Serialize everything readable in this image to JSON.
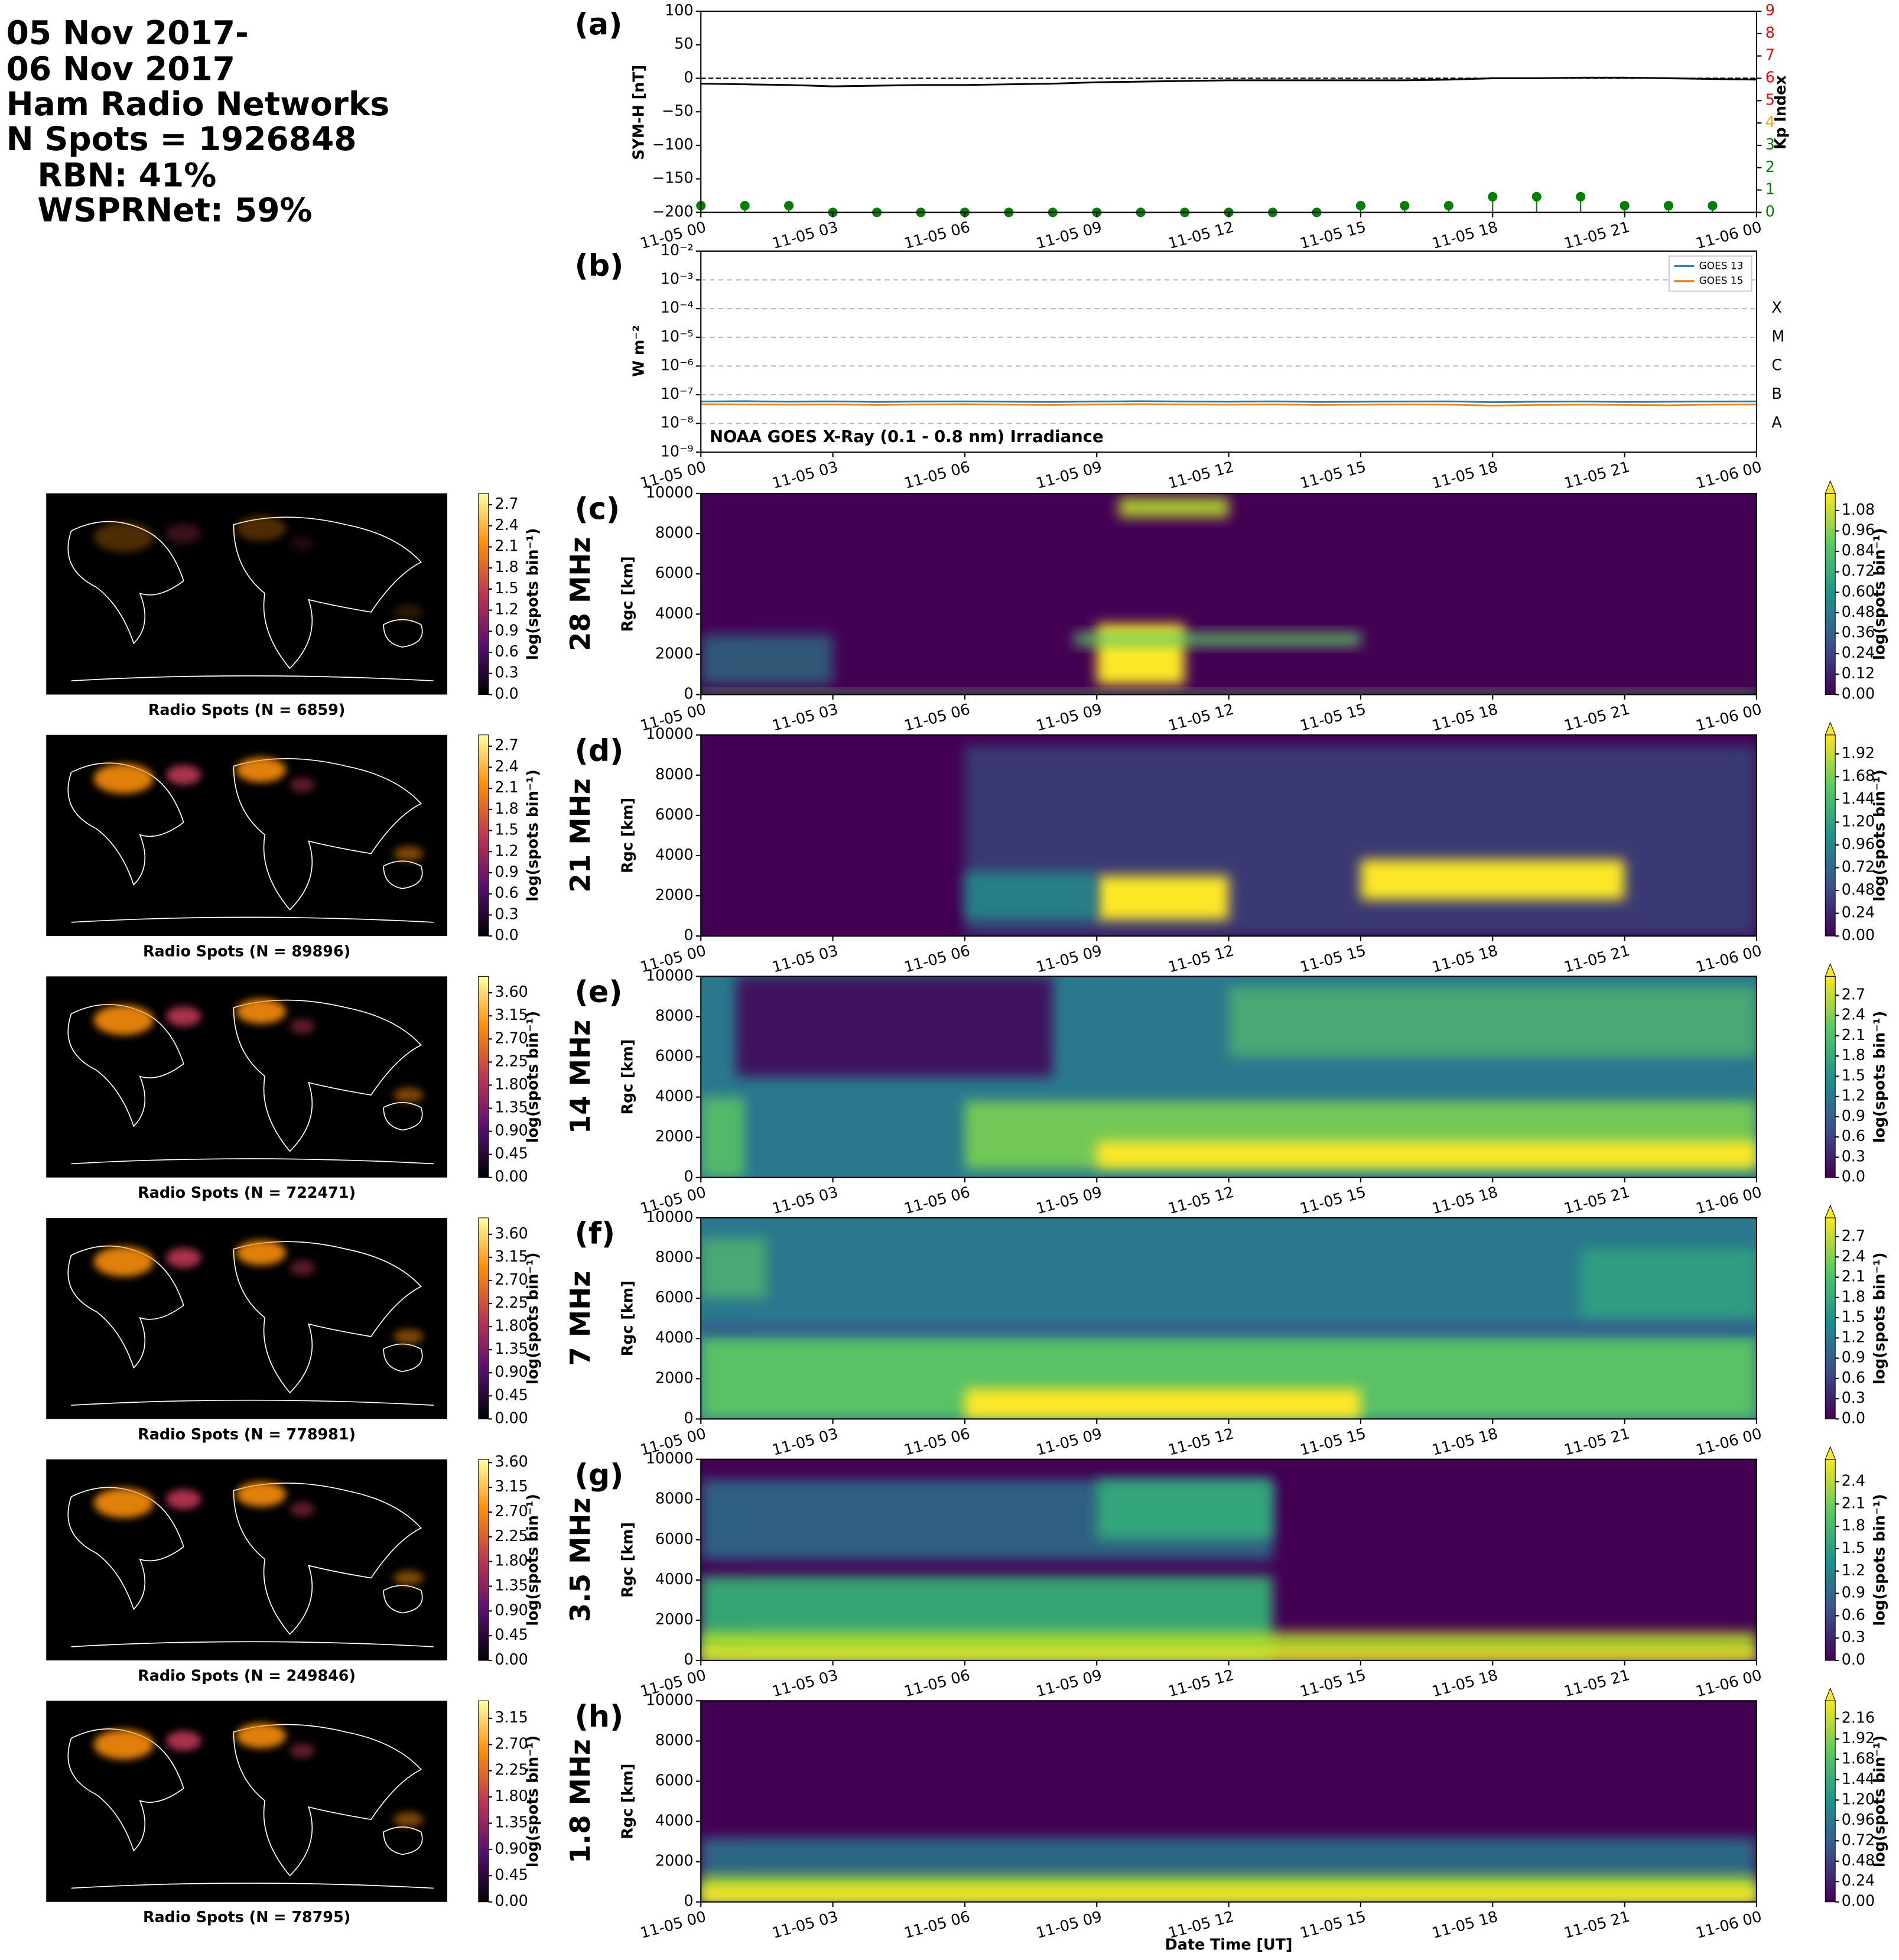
{
  "header": [
    "05 Nov 2017-",
    "06 Nov 2017",
    "Ham Radio Networks",
    "N Spots = 1926848",
    "RBN: 41%",
    "WSPRNet: 59%"
  ],
  "chart_data": [
    {
      "panel": "(a)",
      "type": "line",
      "ylabel": "SYM-H [nT]",
      "y2label": "Kp Index",
      "xlim": [
        "11-05 00",
        "11-06 00"
      ],
      "xticks": [
        "11-05 00",
        "11-05 03",
        "11-05 06",
        "11-05 09",
        "11-05 12",
        "11-05 15",
        "11-05 18",
        "11-05 21",
        "11-06 00"
      ],
      "ylim": [
        -200,
        100
      ],
      "yticks": [
        {
          "value": -200,
          "label": "−200"
        },
        {
          "value": -150,
          "label": "−150"
        },
        {
          "value": -100,
          "label": "−100"
        },
        {
          "value": -50,
          "label": "−50"
        },
        0,
        50,
        100
      ],
      "y2lim": [
        0,
        9
      ],
      "y2ticks": [
        0,
        1,
        2,
        3,
        4,
        5,
        6,
        7,
        8,
        9
      ],
      "y2tick_colors": [
        "#008000",
        "#008000",
        "#008000",
        "#008000",
        "#ffa500",
        "#ff0000",
        "#ff0000",
        "#ff0000",
        "#ff0000",
        "#ff0000"
      ],
      "hline": 0,
      "series": [
        {
          "color": "#000000",
          "x": [
            "11-05 00",
            "11-05 01",
            "11-05 02",
            "11-05 03",
            "11-05 04",
            "11-05 05",
            "11-05 06",
            "11-05 07",
            "11-05 08",
            "11-05 09",
            "11-05 10",
            "11-05 11",
            "11-05 12",
            "11-05 13",
            "11-05 14",
            "11-05 15",
            "11-05 16",
            "11-05 17",
            "11-05 18",
            "11-05 19",
            "11-05 20",
            "11-05 21",
            "11-05 22",
            "11-05 23",
            "11-06 00"
          ],
          "values": [
            -8,
            -9,
            -10,
            -12,
            -11,
            -10,
            -10,
            -9,
            -8,
            -6,
            -5,
            -4,
            -3,
            -3,
            -3,
            -3,
            -3,
            -2,
            0,
            0,
            1,
            1,
            0,
            -1,
            -2
          ]
        },
        {
          "color": "#008000",
          "axis": "y2",
          "style": "stem",
          "x": [
            "11-05 00",
            "11-05 01",
            "11-05 02",
            "11-05 03",
            "11-05 04",
            "11-05 05",
            "11-05 06",
            "11-05 07",
            "11-05 08",
            "11-05 09",
            "11-05 10",
            "11-05 11",
            "11-05 12",
            "11-05 13",
            "11-05 14",
            "11-05 15",
            "11-05 16",
            "11-05 17",
            "11-05 18",
            "11-05 19",
            "11-05 20",
            "11-05 21",
            "11-05 22",
            "11-05 23"
          ],
          "values": [
            0.3,
            0.3,
            0.3,
            0,
            0,
            0,
            0,
            0,
            0,
            0,
            0,
            0,
            0,
            0,
            0,
            0.3,
            0.3,
            0.3,
            0.7,
            0.7,
            0.7,
            0.3,
            0.3,
            0.3
          ]
        }
      ]
    },
    {
      "panel": "(b)",
      "type": "line",
      "log_scale": true,
      "grid": true,
      "legend": "upper right",
      "ylabel": "W m⁻²",
      "annotation": "NOAA GOES X-Ray (0.1 - 0.8 nm) Irradiance",
      "xlim": [
        "11-05 00",
        "11-06 00"
      ],
      "xticks": [
        "11-05 00",
        "11-05 03",
        "11-05 06",
        "11-05 09",
        "11-05 12",
        "11-05 15",
        "11-05 18",
        "11-05 21",
        "11-06 00"
      ],
      "ylim": [
        1e-09,
        0.01
      ],
      "yticks": [
        {
          "value": 1e-09,
          "label": "10⁻⁹"
        },
        {
          "value": 1e-08,
          "label": "10⁻⁸"
        },
        {
          "value": 1e-07,
          "label": "10⁻⁷"
        },
        {
          "value": 1e-06,
          "label": "10⁻⁶"
        },
        {
          "value": 1e-05,
          "label": "10⁻⁵"
        },
        {
          "value": 0.0001,
          "label": "10⁻⁴"
        },
        {
          "value": 0.001,
          "label": "10⁻³"
        },
        {
          "value": 0.01,
          "label": "10⁻²"
        }
      ],
      "levels": [
        {
          "value": 0.0001,
          "label": "X"
        },
        {
          "value": 1e-05,
          "label": "M"
        },
        {
          "value": 1e-06,
          "label": "C"
        },
        {
          "value": 1e-07,
          "label": "B"
        },
        {
          "value": 1e-08,
          "label": "A"
        }
      ],
      "x": [
        "11-05 00",
        "11-05 01",
        "11-05 02",
        "11-05 03",
        "11-05 04",
        "11-05 05",
        "11-05 06",
        "11-05 07",
        "11-05 08",
        "11-05 09",
        "11-05 10",
        "11-05 11",
        "11-05 12",
        "11-05 13",
        "11-05 14",
        "11-05 15",
        "11-05 16",
        "11-05 17",
        "11-05 18",
        "11-05 19",
        "11-05 20",
        "11-05 21",
        "11-05 22",
        "11-05 23",
        "11-06 00"
      ],
      "series": [
        {
          "name": "GOES 13",
          "color": "#1f77b4",
          "values": [
            5.8e-08,
            6e-08,
            5.7e-08,
            5.9e-08,
            5.6e-08,
            5.8e-08,
            5.9e-08,
            5.7e-08,
            5.6e-08,
            5.8e-08,
            6e-08,
            5.8e-08,
            5.7e-08,
            5.9e-08,
            5.6e-08,
            5.7e-08,
            5.8e-08,
            5.9e-08,
            5.5e-08,
            5.7e-08,
            5.8e-08,
            5.6e-08,
            5.7e-08,
            5.8e-08,
            5.9e-08
          ]
        },
        {
          "name": "GOES 15",
          "color": "#ff7f0e",
          "values": [
            4.7e-08,
            4.6e-08,
            4.5e-08,
            4.6e-08,
            4.4e-08,
            4.6e-08,
            4.7e-08,
            4.5e-08,
            4.4e-08,
            4.6e-08,
            4.7e-08,
            4.6e-08,
            4.5e-08,
            4.6e-08,
            4.4e-08,
            4.5e-08,
            4.6e-08,
            4.5e-08,
            4.2e-08,
            4.4e-08,
            4.5e-08,
            4.4e-08,
            4.3e-08,
            4.5e-08,
            4.6e-08
          ]
        }
      ]
    },
    {
      "panel": "(c)",
      "type": "heatmap",
      "band": "28 MHz",
      "ylabel": "Rgc [km]",
      "xlim": [
        "11-05 00",
        "11-06 00"
      ],
      "xticks": [
        "11-05 00",
        "11-05 03",
        "11-05 06",
        "11-05 09",
        "11-05 12",
        "11-05 15",
        "11-05 18",
        "11-05 21",
        "11-06 00"
      ],
      "ylim": [
        0,
        10000
      ],
      "yticks": [
        0,
        2000,
        4000,
        6000,
        8000,
        10000
      ],
      "colorbar": {
        "label": "log(spots bin⁻¹)",
        "colormap": "viridis",
        "extend": "max",
        "clim": [
          0,
          1.18
        ],
        "ticks": [
          {
            "value": 0,
            "label": "0.00"
          },
          0.12,
          0.24,
          0.36,
          0.48,
          {
            "value": 0.6,
            "label": "0.60"
          },
          0.72,
          0.84,
          0.96,
          1.08
        ]
      }
    },
    {
      "panel": "(d)",
      "type": "heatmap",
      "band": "21 MHz",
      "ylabel": "Rgc [km]",
      "xlim": [
        "11-05 00",
        "11-06 00"
      ],
      "xticks": [
        "11-05 00",
        "11-05 03",
        "11-05 06",
        "11-05 09",
        "11-05 12",
        "11-05 15",
        "11-05 18",
        "11-05 21",
        "11-06 00"
      ],
      "ylim": [
        0,
        10000
      ],
      "yticks": [
        0,
        2000,
        4000,
        6000,
        8000,
        10000
      ],
      "colorbar": {
        "label": "log(spots bin⁻¹)",
        "colormap": "viridis",
        "extend": "max",
        "clim": [
          0,
          2.12
        ],
        "ticks": [
          {
            "value": 0,
            "label": "0.00"
          },
          0.24,
          0.48,
          0.72,
          0.96,
          {
            "value": 1.2,
            "label": "1.20"
          },
          1.44,
          1.68,
          1.92
        ]
      }
    },
    {
      "panel": "(e)",
      "type": "heatmap",
      "band": "14 MHz",
      "ylabel": "Rgc [km]",
      "xlim": [
        "11-05 00",
        "11-06 00"
      ],
      "xticks": [
        "11-05 00",
        "11-05 03",
        "11-05 06",
        "11-05 09",
        "11-05 12",
        "11-05 15",
        "11-05 18",
        "11-05 21",
        "11-06 00"
      ],
      "ylim": [
        0,
        10000
      ],
      "yticks": [
        0,
        2000,
        4000,
        6000,
        8000,
        10000
      ],
      "colorbar": {
        "label": "log(spots bin⁻¹)",
        "colormap": "viridis",
        "extend": "max",
        "clim": [
          0,
          2.98
        ],
        "ticks": [
          {
            "value": 0,
            "label": "0.0"
          },
          0.3,
          0.6,
          0.9,
          1.2,
          1.5,
          1.8,
          2.1,
          2.4,
          2.7
        ]
      }
    },
    {
      "panel": "(f)",
      "type": "heatmap",
      "band": "7 MHz",
      "ylabel": "Rgc [km]",
      "xlim": [
        "11-05 00",
        "11-06 00"
      ],
      "xticks": [
        "11-05 00",
        "11-05 03",
        "11-05 06",
        "11-05 09",
        "11-05 12",
        "11-05 15",
        "11-05 18",
        "11-05 21",
        "11-06 00"
      ],
      "ylim": [
        0,
        10000
      ],
      "yticks": [
        0,
        2000,
        4000,
        6000,
        8000,
        10000
      ],
      "colorbar": {
        "label": "log(spots bin⁻¹)",
        "colormap": "viridis",
        "extend": "max",
        "clim": [
          0,
          2.98
        ],
        "ticks": [
          {
            "value": 0,
            "label": "0.0"
          },
          0.3,
          0.6,
          0.9,
          1.2,
          1.5,
          1.8,
          2.1,
          2.4,
          2.7
        ]
      }
    },
    {
      "panel": "(g)",
      "type": "heatmap",
      "band": "3.5 MHz",
      "ylabel": "Rgc [km]",
      "xlim": [
        "11-05 00",
        "11-06 00"
      ],
      "xticks": [
        "11-05 00",
        "11-05 03",
        "11-05 06",
        "11-05 09",
        "11-05 12",
        "11-05 15",
        "11-05 18",
        "11-05 21",
        "11-06 00"
      ],
      "ylim": [
        0,
        10000
      ],
      "yticks": [
        0,
        2000,
        4000,
        6000,
        8000,
        10000
      ],
      "colorbar": {
        "label": "log(spots bin⁻¹)",
        "colormap": "viridis",
        "extend": "max",
        "clim": [
          0,
          2.7
        ],
        "ticks": [
          {
            "value": 0,
            "label": "0.0"
          },
          0.3,
          0.6,
          0.9,
          1.2,
          1.5,
          1.8,
          2.1,
          2.4
        ]
      }
    },
    {
      "panel": "(h)",
      "type": "heatmap",
      "band": "1.8 MHz",
      "ylabel": "Rgc [km]",
      "xlabel": "Date Time [UT]",
      "xlim": [
        "11-05 00",
        "11-06 00"
      ],
      "xticks": [
        "11-05 00",
        "11-05 03",
        "11-05 06",
        "11-05 09",
        "11-05 12",
        "11-05 15",
        "11-05 18",
        "11-05 21",
        "11-06 00"
      ],
      "ylim": [
        0,
        10000
      ],
      "yticks": [
        0,
        2000,
        4000,
        6000,
        8000,
        10000
      ],
      "colorbar": {
        "label": "log(spots bin⁻¹)",
        "colormap": "viridis",
        "extend": "max",
        "clim": [
          0,
          2.37
        ],
        "ticks": [
          {
            "value": 0,
            "label": "0.00"
          },
          0.24,
          0.48,
          0.72,
          0.96,
          {
            "value": 1.2,
            "label": "1.20"
          },
          1.44,
          1.68,
          1.92,
          2.16
        ]
      }
    },
    {
      "type": "map",
      "title": "Radio Spots (N = 6859)",
      "colorbar": {
        "label": "log(spots bin⁻¹)",
        "colormap": "inferno",
        "clim": [
          0,
          2.86
        ],
        "ticks": [
          {
            "value": 0,
            "label": "0.0"
          },
          0.3,
          0.6,
          0.9,
          1.2,
          1.5,
          1.8,
          2.1,
          2.4,
          2.7
        ]
      }
    },
    {
      "type": "map",
      "title": "Radio Spots (N = 89896)",
      "colorbar": {
        "label": "log(spots bin⁻¹)",
        "colormap": "inferno",
        "clim": [
          0,
          2.86
        ],
        "ticks": [
          {
            "value": 0,
            "label": "0.0"
          },
          0.3,
          0.6,
          0.9,
          1.2,
          1.5,
          1.8,
          2.1,
          2.4,
          2.7
        ]
      }
    },
    {
      "type": "map",
      "title": "Radio Spots (N = 722471)",
      "colorbar": {
        "label": "log(spots bin⁻¹)",
        "colormap": "inferno",
        "clim": [
          0,
          3.92
        ],
        "ticks": [
          {
            "value": 0,
            "label": "0.00"
          },
          0.45,
          {
            "value": 0.9,
            "label": "0.90"
          },
          1.35,
          {
            "value": 1.8,
            "label": "1.80"
          },
          2.25,
          {
            "value": 2.7,
            "label": "2.70"
          },
          3.15,
          {
            "value": 3.6,
            "label": "3.60"
          }
        ]
      }
    },
    {
      "type": "map",
      "title": "Radio Spots (N = 778981)",
      "colorbar": {
        "label": "log(spots bin⁻¹)",
        "colormap": "inferno",
        "clim": [
          0,
          3.92
        ],
        "ticks": [
          {
            "value": 0,
            "label": "0.00"
          },
          0.45,
          {
            "value": 0.9,
            "label": "0.90"
          },
          1.35,
          {
            "value": 1.8,
            "label": "1.80"
          },
          2.25,
          {
            "value": 2.7,
            "label": "2.70"
          },
          3.15,
          {
            "value": 3.6,
            "label": "3.60"
          }
        ]
      }
    },
    {
      "type": "map",
      "title": "Radio Spots (N = 249846)",
      "colorbar": {
        "label": "log(spots bin⁻¹)",
        "colormap": "inferno",
        "clim": [
          0,
          3.66
        ],
        "ticks": [
          {
            "value": 0,
            "label": "0.00"
          },
          0.45,
          {
            "value": 0.9,
            "label": "0.90"
          },
          1.35,
          {
            "value": 1.8,
            "label": "1.80"
          },
          2.25,
          {
            "value": 2.7,
            "label": "2.70"
          },
          3.15,
          {
            "value": 3.6,
            "label": "3.60"
          }
        ]
      }
    },
    {
      "type": "map",
      "title": "Radio Spots (N = 78795)",
      "colorbar": {
        "label": "log(spots bin⁻¹)",
        "colormap": "inferno",
        "clim": [
          0,
          3.45
        ],
        "ticks": [
          {
            "value": 0,
            "label": "0.00"
          },
          0.45,
          {
            "value": 0.9,
            "label": "0.90"
          },
          1.35,
          {
            "value": 1.8,
            "label": "1.80"
          },
          2.25,
          {
            "value": 2.7,
            "label": "2.70"
          },
          3.15
        ]
      }
    }
  ]
}
